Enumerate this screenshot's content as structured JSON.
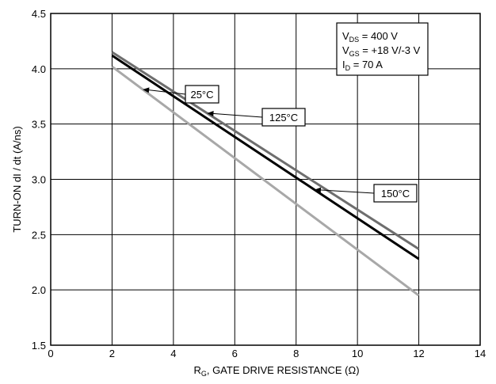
{
  "chart_data": {
    "type": "line",
    "xlabel_main": "R",
    "xlabel_sub": "G",
    "xlabel_rest": ", GATE DRIVE RESISTANCE (Ω)",
    "ylabel": "TURN-ON  dI / dt  (A/ns)",
    "xlim": [
      0,
      14
    ],
    "ylim": [
      1.5,
      4.5
    ],
    "x_ticks": [
      "0",
      "2",
      "4",
      "6",
      "8",
      "10",
      "12",
      "14"
    ],
    "y_ticks": [
      "1.5",
      "2.0",
      "2.5",
      "3.0",
      "3.5",
      "4.0",
      "4.5"
    ],
    "grid": true,
    "series": [
      {
        "name": "25°C",
        "color": "#a8a8a8",
        "x": [
          2,
          12
        ],
        "y": [
          4.02,
          1.95
        ]
      },
      {
        "name": "125°C",
        "color": "#6e6e6e",
        "x": [
          2,
          12
        ],
        "y": [
          4.15,
          2.37
        ]
      },
      {
        "name": "150°C",
        "color": "#000000",
        "x": [
          2,
          12
        ],
        "y": [
          4.12,
          2.28
        ]
      }
    ],
    "annotations": {
      "conditions": [
        {
          "main": "V",
          "sub": "DS",
          "rest": " = 400 V"
        },
        {
          "main": "V",
          "sub": "GS",
          "rest": " = +18 V/-3 V"
        },
        {
          "main": "I",
          "sub": "D",
          "rest": " = 70 A"
        }
      ],
      "callouts": [
        {
          "label": "25°C",
          "series": "25°C",
          "at_x": 3.0
        },
        {
          "label": "125°C",
          "series": "125°C",
          "at_x": 5.1
        },
        {
          "label": "150°C",
          "series": "150°C",
          "at_x": 8.6
        }
      ]
    }
  }
}
